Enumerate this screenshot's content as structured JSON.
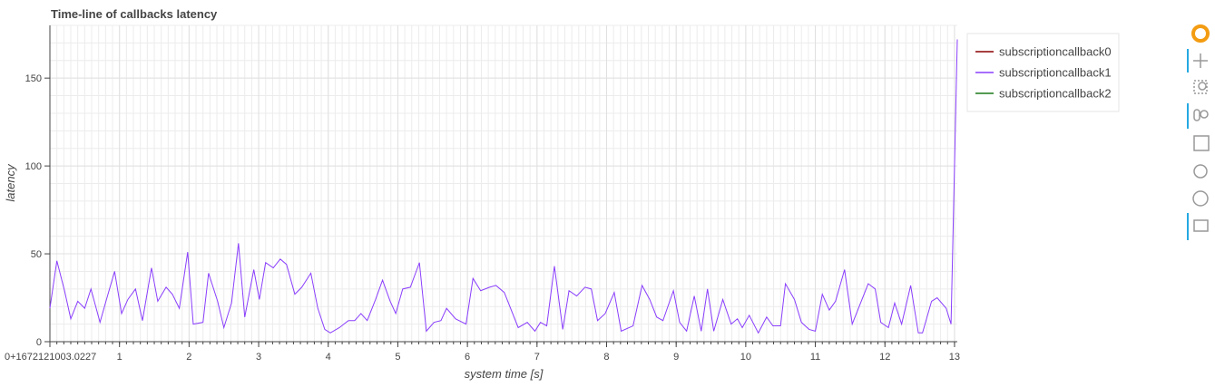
{
  "chart_data": {
    "type": "line",
    "title": "Time-line of callbacks latency",
    "x_label": "system time [s]",
    "y_label": "latency",
    "xlim": [
      0,
      13.04
    ],
    "ylim": [
      0,
      180
    ],
    "xticks": [
      {
        "value": 0,
        "label": "0+1672121003.0227"
      },
      1,
      2,
      3,
      4,
      5,
      6,
      7,
      8,
      9,
      10,
      11,
      12,
      13
    ],
    "yticks": [
      0,
      50,
      100,
      150
    ],
    "grid": true,
    "legend": "right",
    "series": [
      {
        "name": "subscriptioncallback0",
        "color": "#8b0000",
        "x": [],
        "values": []
      },
      {
        "name": "subscriptioncallback1",
        "color": "#8a3ffc",
        "x": [
          0,
          0.1,
          0.21,
          0.3,
          0.4,
          0.5,
          0.59,
          0.72,
          0.82,
          0.93,
          1.03,
          1.12,
          1.23,
          1.33,
          1.46,
          1.55,
          1.67,
          1.76,
          1.86,
          1.98,
          2.06,
          2.2,
          2.28,
          2.41,
          2.5,
          2.61,
          2.71,
          2.8,
          2.93,
          3.01,
          3.1,
          3.21,
          3.31,
          3.4,
          3.52,
          3.62,
          3.75,
          3.85,
          3.95,
          4.03,
          4.16,
          4.29,
          4.38,
          4.47,
          4.56,
          4.68,
          4.78,
          4.89,
          4.97,
          5.07,
          5.18,
          5.31,
          5.41,
          5.52,
          5.62,
          5.7,
          5.83,
          5.98,
          6.08,
          6.19,
          6.32,
          6.41,
          6.53,
          6.73,
          6.86,
          6.97,
          7.05,
          7.14,
          7.25,
          7.37,
          7.46,
          7.57,
          7.69,
          7.78,
          7.87,
          7.98,
          8.11,
          8.21,
          8.38,
          8.51,
          8.62,
          8.72,
          8.81,
          8.96,
          9.05,
          9.15,
          9.26,
          9.36,
          9.45,
          9.54,
          9.67,
          9.79,
          9.88,
          9.95,
          10.05,
          10.18,
          10.3,
          10.39,
          10.5,
          10.57,
          10.7,
          10.8,
          10.91,
          11.0,
          11.1,
          11.2,
          11.29,
          11.42,
          11.53,
          11.63,
          11.76,
          11.86,
          11.94,
          12.05,
          12.14,
          12.24,
          12.37,
          12.48,
          12.54,
          12.67,
          12.75,
          12.88,
          12.95,
          13.04
        ],
        "values": [
          19,
          46,
          29,
          13,
          23,
          19,
          30,
          11,
          25,
          40,
          16,
          24,
          30,
          12,
          42,
          23,
          31,
          27,
          19,
          51,
          10,
          11,
          39,
          23,
          8,
          22,
          56,
          14,
          41,
          24,
          45,
          42,
          47,
          44,
          27,
          31,
          39,
          19,
          7,
          5,
          8,
          12,
          12,
          16,
          12,
          24,
          35,
          23,
          16,
          30,
          31,
          45,
          6,
          11,
          12,
          19,
          13,
          10,
          36,
          29,
          31,
          32,
          28,
          8,
          11,
          6,
          11,
          9,
          43,
          7,
          29,
          26,
          31,
          30,
          12,
          16,
          28,
          6,
          9,
          32,
          24,
          14,
          12,
          29,
          11,
          6,
          26,
          6,
          30,
          6,
          24,
          10,
          13,
          8,
          15,
          5,
          14,
          9,
          9,
          33,
          24,
          11,
          7,
          6,
          27,
          18,
          23,
          41,
          10,
          20,
          33,
          30,
          11,
          8,
          22,
          10,
          32,
          5,
          5,
          23,
          25,
          19,
          10,
          172
        ]
      },
      {
        "name": "subscriptioncallback2",
        "color": "#1a7a1a",
        "x": [],
        "values": []
      }
    ]
  }
}
